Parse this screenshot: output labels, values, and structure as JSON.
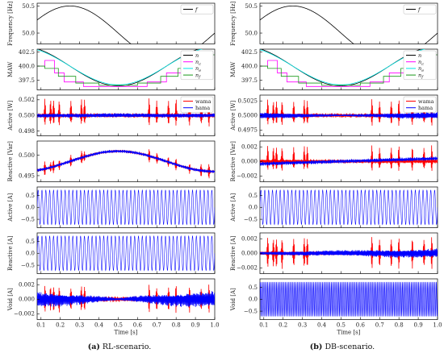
{
  "chart_data": [
    {
      "panel": "a",
      "caption_tag": "(a)",
      "caption_text": "RL-scenario.",
      "type": "line",
      "xlabel": "Time [s]",
      "xlim": [
        0.08,
        1.0
      ],
      "xticks": [
        "0.1",
        "0.2",
        "0.3",
        "0.4",
        "0.5",
        "0.6",
        "0.7",
        "0.8",
        "0.9",
        "1.0"
      ],
      "subplots": [
        {
          "key": "freq",
          "ylabel": "Frequency [Hz]",
          "yticks": [
            "50.5",
            "50.0"
          ],
          "ylim": [
            49.8,
            50.55
          ],
          "legend": [
            "f"
          ],
          "series": [
            {
              "name": "f",
              "color": "#000000",
              "shape": "sine",
              "from_x": 0.08,
              "to_x": 1.0,
              "base": 50.0,
              "amplitude": 0.5,
              "period": 1.0,
              "phase": 0.0
            }
          ]
        },
        {
          "key": "maw",
          "ylabel": "MAW",
          "yticks": [
            "402.5",
            "400.0",
            "397.5"
          ],
          "ylim": [
            395.8,
            403.0
          ],
          "legend": [
            "n",
            "nc",
            "ne",
            "nf"
          ],
          "series": [
            {
              "name": "n",
              "color": "#000000",
              "shape": "cos",
              "from_x": 0.08,
              "to_x": 1.0,
              "base": 400.0,
              "amplitude": 3.5,
              "period": 1.0,
              "phase": 0.0
            },
            {
              "name": "nc",
              "color": "#ff00ff",
              "shape": "stairs",
              "steps": [
                [
                  0.08,
                  400.0
                ],
                [
                  0.12,
                  401.0
                ],
                [
                  0.17,
                  398.8
                ],
                [
                  0.22,
                  397.2
                ],
                [
                  0.32,
                  396.4
                ],
                [
                  0.65,
                  397.2
                ],
                [
                  0.75,
                  398.8
                ],
                [
                  0.85,
                  401.0
                ],
                [
                  0.95,
                  402.0
                ],
                [
                  1.0,
                  402.0
                ]
              ]
            },
            {
              "name": "ne",
              "color": "#00e5e5",
              "shape": "cos",
              "from_x": 0.08,
              "to_x": 1.0,
              "base": 400.0,
              "amplitude": 3.3,
              "period": 1.0,
              "phase": 0.0
            },
            {
              "name": "nf",
              "color": "#1a9a1a",
              "shape": "stairs",
              "steps": [
                [
                  0.08,
                  400.0
                ],
                [
                  0.12,
                  399.6
                ],
                [
                  0.19,
                  398.2
                ],
                [
                  0.28,
                  397.0
                ],
                [
                  0.4,
                  396.6
                ],
                [
                  0.6,
                  397.0
                ],
                [
                  0.72,
                  398.2
                ],
                [
                  0.81,
                  399.6
                ],
                [
                  0.88,
                  401.0
                ],
                [
                  0.95,
                  402.0
                ],
                [
                  1.0,
                  402.0
                ]
              ]
            }
          ]
        },
        {
          "key": "active_w",
          "ylabel": "Active [W]",
          "yticks": [
            "0.502",
            "0.500",
            "0.498"
          ],
          "ylim": [
            0.4974,
            0.5026
          ],
          "legend": [
            "wama",
            "hama"
          ],
          "series": [
            {
              "name": "wama",
              "color": "#ff0000",
              "shape": "bursts",
              "base": 0.5,
              "spikes": [
                0.12,
                0.15,
                0.165,
                0.195,
                0.255,
                0.31,
                0.325,
                0.66,
                0.7,
                0.76,
                0.8,
                0.87,
                0.93,
                0.97
              ],
              "spike_height": 0.0022,
              "noise": 0.0003
            },
            {
              "name": "hama",
              "color": "#0000ff",
              "shape": "noise",
              "base": 0.5,
              "noise": 0.00025,
              "envelope": "sym"
            }
          ]
        },
        {
          "key": "reactive_var",
          "ylabel": "Reactive [Var]",
          "yticks": [
            "0.500",
            "0.495"
          ],
          "ylim": [
            0.4935,
            0.5035
          ],
          "legend": [],
          "series": [
            {
              "name": "wama",
              "color": "#ff0000",
              "shape": "trend_bursts",
              "trend_base": 0.4985,
              "trend_amp": 0.0025,
              "spikes": [
                0.12,
                0.15,
                0.165,
                0.195,
                0.255,
                0.31,
                0.325,
                0.66,
                0.7,
                0.76,
                0.8,
                0.87,
                0.93,
                0.97
              ],
              "spike_height": 0.0016,
              "noise": 0.0004
            },
            {
              "name": "hama",
              "color": "#0000ff",
              "shape": "trend",
              "trend_base": 0.4985,
              "trend_amp": 0.0025,
              "noise": 0.0004
            }
          ]
        },
        {
          "key": "active_a",
          "ylabel": "Active [A]",
          "yticks": [
            "0.5",
            "0.0",
            "−0.5"
          ],
          "ylim": [
            -0.85,
            0.85
          ],
          "legend": [],
          "series": [
            {
              "name": "hama",
              "color": "#0000ff",
              "shape": "osc",
              "base": 0.0,
              "amplitude": 0.72,
              "cycles": 46
            }
          ]
        },
        {
          "key": "reactive_a",
          "ylabel": "Reactive [A]",
          "yticks": [
            "0.5",
            "0.0",
            "−0.5"
          ],
          "ylim": [
            -0.85,
            0.85
          ],
          "legend": [],
          "series": [
            {
              "name": "hama",
              "color": "#0000ff",
              "shape": "osc",
              "base": 0.0,
              "amplitude": 0.72,
              "cycles": 46
            }
          ]
        },
        {
          "key": "void_a",
          "ylabel": "Void [A]",
          "yticks": [
            "0.002",
            "0.000",
            "−0.002"
          ],
          "ylim": [
            -0.0028,
            0.0028
          ],
          "legend": [],
          "series": [
            {
              "name": "wama",
              "color": "#ff0000",
              "shape": "bursts",
              "base": 0.0,
              "spikes": [
                0.12,
                0.15,
                0.165,
                0.195,
                0.255,
                0.31,
                0.325,
                0.66,
                0.7,
                0.76,
                0.8,
                0.87,
                0.93,
                0.97
              ],
              "spike_height": 0.0019,
              "noise": 0.0004,
              "signed": true
            },
            {
              "name": "hama",
              "color": "#0000ff",
              "shape": "noise",
              "base": 0.0,
              "noise": 0.0006,
              "envelope": "edges"
            }
          ]
        }
      ]
    },
    {
      "panel": "b",
      "caption_tag": "(b)",
      "caption_text": "DB-scenario.",
      "type": "line",
      "xlabel": "Time [s]",
      "xlim": [
        0.08,
        1.0
      ],
      "xticks": [
        "0.1",
        "0.2",
        "0.3",
        "0.4",
        "0.5",
        "0.6",
        "0.7",
        "0.8",
        "0.9",
        "1.0"
      ],
      "subplots": [
        {
          "key": "freq",
          "ylabel": "Frequency [Hz]",
          "yticks": [
            "50.5",
            "50.0"
          ],
          "ylim": [
            49.8,
            50.55
          ],
          "legend": [
            "f"
          ],
          "series": [
            {
              "name": "f",
              "color": "#000000",
              "shape": "sine",
              "from_x": 0.08,
              "to_x": 1.0,
              "base": 50.0,
              "amplitude": 0.5,
              "period": 1.0,
              "phase": 0.0
            }
          ]
        },
        {
          "key": "maw",
          "ylabel": "MAW",
          "yticks": [
            "402.5",
            "400.0",
            "397.5"
          ],
          "ylim": [
            395.8,
            403.0
          ],
          "legend": [
            "n",
            "nc",
            "ne",
            "nf"
          ],
          "series": [
            {
              "name": "n",
              "color": "#000000",
              "shape": "cos",
              "from_x": 0.08,
              "to_x": 1.0,
              "base": 400.0,
              "amplitude": 3.5,
              "period": 1.0,
              "phase": 0.0
            },
            {
              "name": "nc",
              "color": "#ff00ff",
              "shape": "stairs",
              "steps": [
                [
                  0.08,
                  400.0
                ],
                [
                  0.12,
                  401.0
                ],
                [
                  0.17,
                  398.8
                ],
                [
                  0.22,
                  397.2
                ],
                [
                  0.32,
                  396.4
                ],
                [
                  0.65,
                  397.2
                ],
                [
                  0.75,
                  398.8
                ],
                [
                  0.85,
                  401.0
                ],
                [
                  0.95,
                  402.0
                ],
                [
                  1.0,
                  402.0
                ]
              ]
            },
            {
              "name": "ne",
              "color": "#00e5e5",
              "shape": "cos",
              "from_x": 0.08,
              "to_x": 1.0,
              "base": 400.0,
              "amplitude": 3.3,
              "period": 1.0,
              "phase": 0.0
            },
            {
              "name": "nf",
              "color": "#1a9a1a",
              "shape": "stairs",
              "steps": [
                [
                  0.08,
                  400.0
                ],
                [
                  0.12,
                  399.6
                ],
                [
                  0.19,
                  398.2
                ],
                [
                  0.28,
                  397.0
                ],
                [
                  0.4,
                  396.6
                ],
                [
                  0.6,
                  397.0
                ],
                [
                  0.72,
                  398.2
                ],
                [
                  0.81,
                  399.6
                ],
                [
                  0.88,
                  401.0
                ],
                [
                  0.95,
                  402.0
                ],
                [
                  1.0,
                  402.0
                ]
              ]
            }
          ]
        },
        {
          "key": "active_w",
          "ylabel": "Active [W]",
          "yticks": [
            "0.5025",
            "0.5000",
            "0.4975"
          ],
          "ylim": [
            0.4965,
            0.5035
          ],
          "legend": [
            "wama",
            "hama"
          ],
          "series": [
            {
              "name": "wama",
              "color": "#ff0000",
              "shape": "bursts",
              "base": 0.5,
              "spikes": [
                0.12,
                0.15,
                0.165,
                0.195,
                0.255,
                0.31,
                0.325,
                0.66,
                0.7,
                0.76,
                0.8,
                0.87,
                0.93,
                0.97
              ],
              "spike_height": 0.0028,
              "noise": 0.0004
            },
            {
              "name": "hama",
              "color": "#0000ff",
              "shape": "noise",
              "base": 0.5,
              "noise": 0.0003,
              "envelope": "edges"
            }
          ]
        },
        {
          "key": "reactive_var",
          "ylabel": "Reactive [Var]",
          "yticks": [
            "0.002",
            "0.000",
            "−0.002"
          ],
          "ylim": [
            -0.0028,
            0.0028
          ],
          "legend": [],
          "series": [
            {
              "name": "wama",
              "color": "#ff0000",
              "shape": "bursts",
              "base": 0.0,
              "spikes": [
                0.12,
                0.15,
                0.165,
                0.195,
                0.255,
                0.31,
                0.325,
                0.66,
                0.7,
                0.76,
                0.8,
                0.87,
                0.93,
                0.97
              ],
              "spike_height": 0.0022,
              "noise": 0.0003
            },
            {
              "name": "hama",
              "color": "#0000ff",
              "shape": "trend",
              "trend_base": 0.0,
              "trend_amp": -0.0004,
              "noise": 0.0003
            }
          ]
        },
        {
          "key": "active_a",
          "ylabel": "Active [A]",
          "yticks": [
            "0.5",
            "0.0",
            "−0.5"
          ],
          "ylim": [
            -0.85,
            0.85
          ],
          "legend": [],
          "series": [
            {
              "name": "hama",
              "color": "#0000ff",
              "shape": "osc",
              "base": 0.0,
              "amplitude": 0.72,
              "cycles": 46
            }
          ]
        },
        {
          "key": "reactive_a",
          "ylabel": "Reactive [A]",
          "yticks": [
            "0.002",
            "0.000",
            "−0.002"
          ],
          "ylim": [
            -0.0028,
            0.0028
          ],
          "legend": [],
          "series": [
            {
              "name": "wama",
              "color": "#ff0000",
              "shape": "bursts",
              "base": 0.0,
              "spikes": [
                0.12,
                0.15,
                0.165,
                0.195,
                0.255,
                0.31,
                0.325,
                0.66,
                0.7,
                0.76,
                0.8,
                0.87,
                0.93,
                0.97
              ],
              "spike_height": 0.0022,
              "noise": 0.0003,
              "signed": true
            },
            {
              "name": "hama",
              "color": "#0000ff",
              "shape": "noise",
              "base": 0.0,
              "noise": 0.0004,
              "envelope": "rise"
            }
          ]
        },
        {
          "key": "void_a",
          "ylabel": "Void [A]",
          "yticks": [
            "0.5",
            "0.0",
            "−0.5"
          ],
          "ylim": [
            -0.85,
            0.85
          ],
          "legend": [],
          "series": [
            {
              "name": "hama",
              "color": "#0000ff",
              "shape": "osc",
              "base": 0.0,
              "amplitude": 0.72,
              "cycles": 120
            }
          ]
        }
      ]
    }
  ]
}
